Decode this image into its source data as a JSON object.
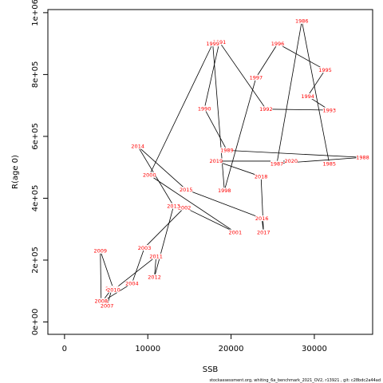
{
  "chart_data": {
    "type": "line",
    "xlabel": "SSB",
    "ylabel": "R(age 0)",
    "xlim": [
      -2000,
      37000
    ],
    "ylim": [
      -40000,
      1010000
    ],
    "xticks": [
      0,
      10000,
      20000,
      30000
    ],
    "xtick_labels": [
      "0",
      "10000",
      "20000",
      "30000"
    ],
    "yticks": [
      0,
      200000,
      400000,
      600000,
      800000,
      1000000
    ],
    "ytick_labels": [
      "0e+00",
      "2e+05",
      "4e+05",
      "6e+05",
      "8e+05",
      "1e+06"
    ],
    "grid": false,
    "line_color": "#000000",
    "label_color": "#ff0000",
    "points": [
      {
        "year": "1985",
        "x": 31800,
        "y": 512000
      },
      {
        "year": "1986",
        "x": 28500,
        "y": 973000
      },
      {
        "year": "1987",
        "x": 25500,
        "y": 512000
      },
      {
        "year": "1988",
        "x": 35800,
        "y": 532000
      },
      {
        "year": "1989",
        "x": 19500,
        "y": 555000
      },
      {
        "year": "1990",
        "x": 16800,
        "y": 690000
      },
      {
        "year": "1991",
        "x": 18600,
        "y": 905000
      },
      {
        "year": "1992",
        "x": 24200,
        "y": 688000
      },
      {
        "year": "1993",
        "x": 31800,
        "y": 685000
      },
      {
        "year": "1994",
        "x": 29200,
        "y": 730000
      },
      {
        "year": "1995",
        "x": 31300,
        "y": 815000
      },
      {
        "year": "1996",
        "x": 25600,
        "y": 900000
      },
      {
        "year": "1997",
        "x": 23000,
        "y": 790000
      },
      {
        "year": "1998",
        "x": 19200,
        "y": 425000
      },
      {
        "year": "1999",
        "x": 17800,
        "y": 900000
      },
      {
        "year": "2000",
        "x": 10200,
        "y": 475000
      },
      {
        "year": "2001",
        "x": 20500,
        "y": 290000
      },
      {
        "year": "2002",
        "x": 14400,
        "y": 370000
      },
      {
        "year": "2003",
        "x": 9600,
        "y": 240000
      },
      {
        "year": "2004",
        "x": 8100,
        "y": 125000
      },
      {
        "year": "2005",
        "x": 4500,
        "y": 65000
      },
      {
        "year": "2006",
        "x": 5700,
        "y": 108000
      },
      {
        "year": "2007",
        "x": 5100,
        "y": 52000
      },
      {
        "year": "2008",
        "x": 4400,
        "y": 68000
      },
      {
        "year": "2009",
        "x": 4300,
        "y": 230000
      },
      {
        "year": "2010",
        "x": 5900,
        "y": 104000
      },
      {
        "year": "2011",
        "x": 11000,
        "y": 212000
      },
      {
        "year": "2012",
        "x": 10800,
        "y": 145000
      },
      {
        "year": "2013",
        "x": 13100,
        "y": 375000
      },
      {
        "year": "2014",
        "x": 8800,
        "y": 568000
      },
      {
        "year": "2015",
        "x": 14600,
        "y": 428000
      },
      {
        "year": "2016",
        "x": 23700,
        "y": 335000
      },
      {
        "year": "2017",
        "x": 23900,
        "y": 290000
      },
      {
        "year": "2018",
        "x": 23600,
        "y": 470000
      },
      {
        "year": "2019",
        "x": 18200,
        "y": 520000
      },
      {
        "year": "2020",
        "x": 27200,
        "y": 520000
      }
    ]
  },
  "footer_text": "stockassessment.org,  whiting_6a_benchmark_2021_OV2,  r13921 ,  git: c28bdc2a44ad"
}
